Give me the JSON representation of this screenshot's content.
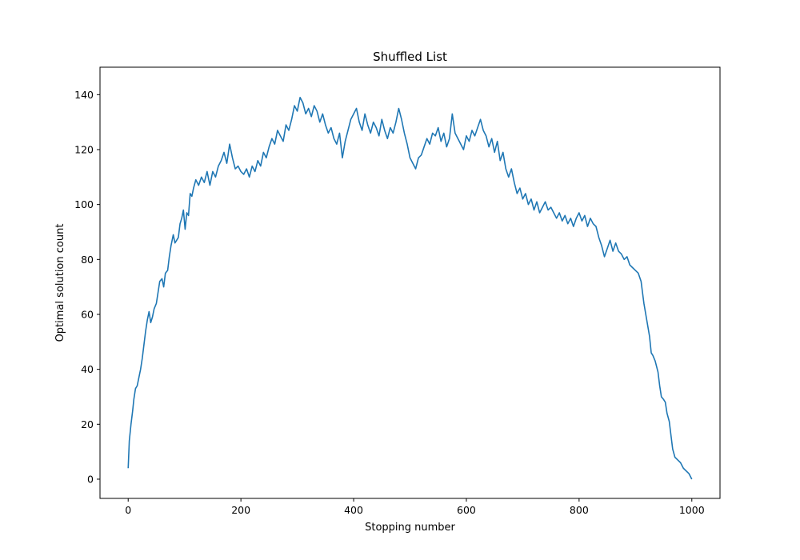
{
  "chart_data": {
    "type": "line",
    "title": "Shuffled List",
    "xlabel": "Stopping number",
    "ylabel": "Optimal solution count",
    "xlim": [
      -50,
      1050
    ],
    "ylim": [
      -7,
      150
    ],
    "x_ticks": [
      0,
      200,
      400,
      600,
      800,
      1000
    ],
    "y_ticks": [
      0,
      20,
      40,
      60,
      80,
      100,
      120,
      140
    ],
    "grid": false,
    "legend": "none",
    "series": [
      {
        "color": "#1f77b4",
        "points": [
          [
            0,
            4
          ],
          [
            2,
            14
          ],
          [
            5,
            20
          ],
          [
            8,
            25
          ],
          [
            10,
            29
          ],
          [
            13,
            33
          ],
          [
            16,
            34
          ],
          [
            19,
            37
          ],
          [
            22,
            40
          ],
          [
            25,
            44
          ],
          [
            28,
            49
          ],
          [
            31,
            54
          ],
          [
            34,
            58
          ],
          [
            37,
            61
          ],
          [
            40,
            57
          ],
          [
            43,
            59
          ],
          [
            46,
            62
          ],
          [
            50,
            64
          ],
          [
            53,
            68
          ],
          [
            56,
            72
          ],
          [
            60,
            73
          ],
          [
            63,
            70
          ],
          [
            66,
            75
          ],
          [
            70,
            76
          ],
          [
            73,
            81
          ],
          [
            76,
            85
          ],
          [
            80,
            89
          ],
          [
            83,
            86
          ],
          [
            86,
            87
          ],
          [
            89,
            88
          ],
          [
            92,
            93
          ],
          [
            95,
            95
          ],
          [
            98,
            98
          ],
          [
            101,
            91
          ],
          [
            104,
            97
          ],
          [
            107,
            96
          ],
          [
            110,
            104
          ],
          [
            113,
            103
          ],
          [
            116,
            106
          ],
          [
            120,
            109
          ],
          [
            125,
            107
          ],
          [
            130,
            110
          ],
          [
            135,
            108
          ],
          [
            140,
            112
          ],
          [
            145,
            107
          ],
          [
            150,
            112
          ],
          [
            155,
            110
          ],
          [
            160,
            114
          ],
          [
            165,
            116
          ],
          [
            170,
            119
          ],
          [
            175,
            115
          ],
          [
            180,
            122
          ],
          [
            185,
            117
          ],
          [
            190,
            113
          ],
          [
            195,
            114
          ],
          [
            200,
            112
          ],
          [
            205,
            111
          ],
          [
            210,
            113
          ],
          [
            215,
            110
          ],
          [
            220,
            114
          ],
          [
            225,
            112
          ],
          [
            230,
            116
          ],
          [
            235,
            114
          ],
          [
            240,
            119
          ],
          [
            245,
            117
          ],
          [
            250,
            121
          ],
          [
            255,
            124
          ],
          [
            260,
            122
          ],
          [
            265,
            127
          ],
          [
            270,
            125
          ],
          [
            275,
            123
          ],
          [
            280,
            129
          ],
          [
            285,
            127
          ],
          [
            290,
            131
          ],
          [
            295,
            136
          ],
          [
            300,
            134
          ],
          [
            305,
            139
          ],
          [
            310,
            137
          ],
          [
            315,
            133
          ],
          [
            320,
            135
          ],
          [
            325,
            132
          ],
          [
            330,
            136
          ],
          [
            335,
            134
          ],
          [
            340,
            130
          ],
          [
            345,
            133
          ],
          [
            350,
            129
          ],
          [
            355,
            126
          ],
          [
            360,
            128
          ],
          [
            365,
            124
          ],
          [
            370,
            122
          ],
          [
            375,
            126
          ],
          [
            380,
            117
          ],
          [
            385,
            123
          ],
          [
            390,
            127
          ],
          [
            395,
            131
          ],
          [
            400,
            133
          ],
          [
            405,
            135
          ],
          [
            410,
            130
          ],
          [
            415,
            127
          ],
          [
            420,
            133
          ],
          [
            425,
            129
          ],
          [
            430,
            126
          ],
          [
            435,
            130
          ],
          [
            440,
            128
          ],
          [
            445,
            125
          ],
          [
            450,
            131
          ],
          [
            455,
            127
          ],
          [
            460,
            124
          ],
          [
            465,
            128
          ],
          [
            470,
            126
          ],
          [
            475,
            130
          ],
          [
            480,
            135
          ],
          [
            485,
            131
          ],
          [
            490,
            126
          ],
          [
            495,
            122
          ],
          [
            500,
            117
          ],
          [
            505,
            115
          ],
          [
            510,
            113
          ],
          [
            515,
            117
          ],
          [
            520,
            118
          ],
          [
            525,
            121
          ],
          [
            530,
            124
          ],
          [
            535,
            122
          ],
          [
            540,
            126
          ],
          [
            545,
            125
          ],
          [
            550,
            128
          ],
          [
            555,
            123
          ],
          [
            560,
            126
          ],
          [
            565,
            121
          ],
          [
            570,
            124
          ],
          [
            575,
            133
          ],
          [
            580,
            126
          ],
          [
            585,
            124
          ],
          [
            590,
            122
          ],
          [
            595,
            120
          ],
          [
            600,
            125
          ],
          [
            605,
            123
          ],
          [
            610,
            127
          ],
          [
            615,
            125
          ],
          [
            620,
            128
          ],
          [
            625,
            131
          ],
          [
            630,
            127
          ],
          [
            635,
            125
          ],
          [
            640,
            121
          ],
          [
            645,
            124
          ],
          [
            650,
            119
          ],
          [
            655,
            123
          ],
          [
            660,
            116
          ],
          [
            665,
            119
          ],
          [
            670,
            113
          ],
          [
            675,
            110
          ],
          [
            680,
            113
          ],
          [
            685,
            108
          ],
          [
            690,
            104
          ],
          [
            695,
            106
          ],
          [
            700,
            102
          ],
          [
            705,
            104
          ],
          [
            710,
            100
          ],
          [
            715,
            102
          ],
          [
            720,
            98
          ],
          [
            725,
            101
          ],
          [
            730,
            97
          ],
          [
            735,
            99
          ],
          [
            740,
            101
          ],
          [
            745,
            98
          ],
          [
            750,
            99
          ],
          [
            755,
            97
          ],
          [
            760,
            95
          ],
          [
            765,
            97
          ],
          [
            770,
            94
          ],
          [
            775,
            96
          ],
          [
            780,
            93
          ],
          [
            785,
            95
          ],
          [
            790,
            92
          ],
          [
            795,
            95
          ],
          [
            800,
            97
          ],
          [
            805,
            94
          ],
          [
            810,
            96
          ],
          [
            815,
            92
          ],
          [
            820,
            95
          ],
          [
            825,
            93
          ],
          [
            830,
            92
          ],
          [
            835,
            88
          ],
          [
            840,
            85
          ],
          [
            845,
            81
          ],
          [
            850,
            84
          ],
          [
            855,
            87
          ],
          [
            860,
            83
          ],
          [
            865,
            86
          ],
          [
            870,
            83
          ],
          [
            875,
            82
          ],
          [
            880,
            80
          ],
          [
            885,
            81
          ],
          [
            890,
            78
          ],
          [
            895,
            77
          ],
          [
            900,
            76
          ],
          [
            905,
            75
          ],
          [
            910,
            72
          ],
          [
            915,
            64
          ],
          [
            920,
            58
          ],
          [
            925,
            52
          ],
          [
            928,
            46
          ],
          [
            931,
            45
          ],
          [
            935,
            43
          ],
          [
            940,
            39
          ],
          [
            943,
            34
          ],
          [
            946,
            30
          ],
          [
            950,
            29
          ],
          [
            953,
            28
          ],
          [
            956,
            24
          ],
          [
            960,
            21
          ],
          [
            963,
            16
          ],
          [
            966,
            11
          ],
          [
            970,
            8
          ],
          [
            975,
            7
          ],
          [
            980,
            6
          ],
          [
            985,
            4
          ],
          [
            990,
            3
          ],
          [
            995,
            2
          ],
          [
            1000,
            0
          ]
        ]
      }
    ]
  }
}
